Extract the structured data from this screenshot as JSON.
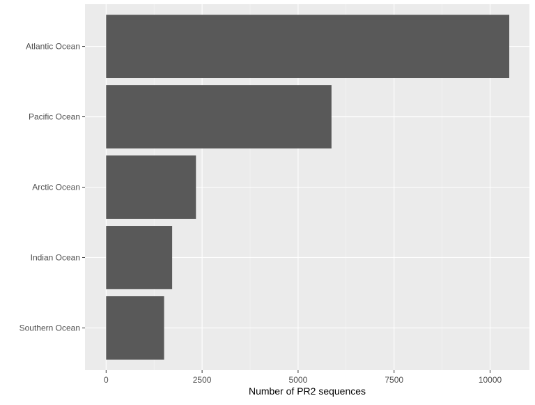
{
  "chart_data": {
    "type": "bar",
    "orientation": "horizontal",
    "categories": [
      "Atlantic Ocean",
      "Pacific Ocean",
      "Arctic Ocean",
      "Indian Ocean",
      "Southern Ocean"
    ],
    "values": [
      10500,
      5870,
      2340,
      1720,
      1510
    ],
    "title": "",
    "xlabel": "Number of PR2 sequences",
    "ylabel": "",
    "xlim": [
      -550,
      11025
    ],
    "x_ticks": [
      0,
      2500,
      5000,
      7500,
      10000
    ],
    "x_tick_labels": [
      "0",
      "2500",
      "5000",
      "7500",
      "10000"
    ],
    "grid": true,
    "legend": "none",
    "colors": {
      "panel_background": "#ebebeb",
      "grid_major": "#ffffff",
      "bar_fill": "#595959",
      "axis_text": "#4d4d4d",
      "axis_title": "#000000",
      "tick": "#333333"
    }
  }
}
